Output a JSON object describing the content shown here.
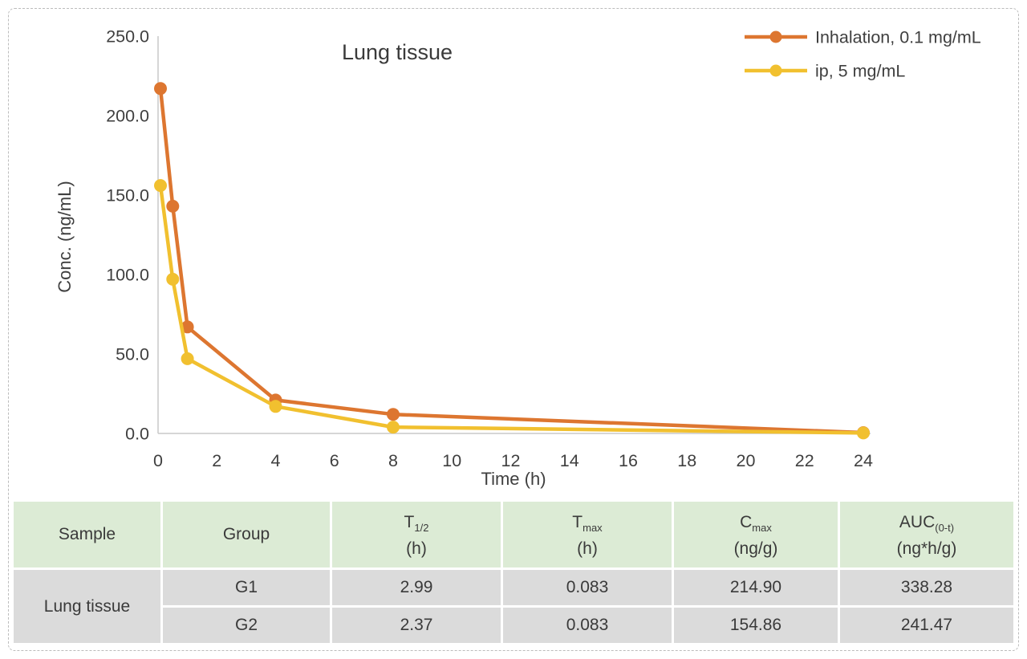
{
  "chart_data": {
    "type": "line",
    "title": "Lung tissue",
    "xlabel": "Time (h)",
    "ylabel": "Conc. (ng/mL)",
    "xlim": [
      0,
      24
    ],
    "ylim": [
      0,
      250
    ],
    "grid": false,
    "legend_position": "top-right",
    "xticks": [
      0,
      2,
      4,
      6,
      8,
      10,
      12,
      14,
      16,
      18,
      20,
      22,
      24
    ],
    "yticks": [
      {
        "value": 0,
        "label": "0.0"
      },
      {
        "value": 50,
        "label": "50.0"
      },
      {
        "value": 100,
        "label": "100.0"
      },
      {
        "value": 150,
        "label": "150.0"
      },
      {
        "value": 200,
        "label": "200.0"
      },
      {
        "value": 250,
        "label": "250.0"
      }
    ],
    "series": [
      {
        "name": "Inhalation, 0.1 mg/mL",
        "color": "#dd7630",
        "x": [
          0.083,
          0.5,
          1,
          4,
          8,
          24
        ],
        "y": [
          217,
          143,
          67,
          21,
          12,
          0.5
        ]
      },
      {
        "name": "ip, 5 mg/mL",
        "color": "#f1c02f",
        "x": [
          0.083,
          0.5,
          1,
          4,
          8,
          24
        ],
        "y": [
          156,
          97,
          47,
          17,
          4,
          0.3
        ]
      }
    ]
  },
  "table": {
    "columns": [
      {
        "label": "Sample"
      },
      {
        "label": "Group"
      },
      {
        "main": "T",
        "sub": "1/2",
        "unit": "(h)"
      },
      {
        "main": "T",
        "sub": "max",
        "unit": "(h)"
      },
      {
        "main": "C",
        "sub": "max",
        "unit": "(ng/g)"
      },
      {
        "main": "AUC",
        "sub": "(0-t)",
        "unit": "(ng*h/g)"
      }
    ],
    "sample_label": "Lung tissue",
    "rows": [
      {
        "cells": [
          "G1",
          "2.99",
          "0.083",
          "214.90",
          "338.28"
        ]
      },
      {
        "cells": [
          "G2",
          "2.37",
          "0.083",
          "154.86",
          "241.47"
        ]
      }
    ]
  },
  "colors": {
    "axis": "#c9c9c9",
    "text": "#3f3f3f",
    "header_bg": "#dcebd5",
    "row_bg": "#dbdbdb"
  }
}
